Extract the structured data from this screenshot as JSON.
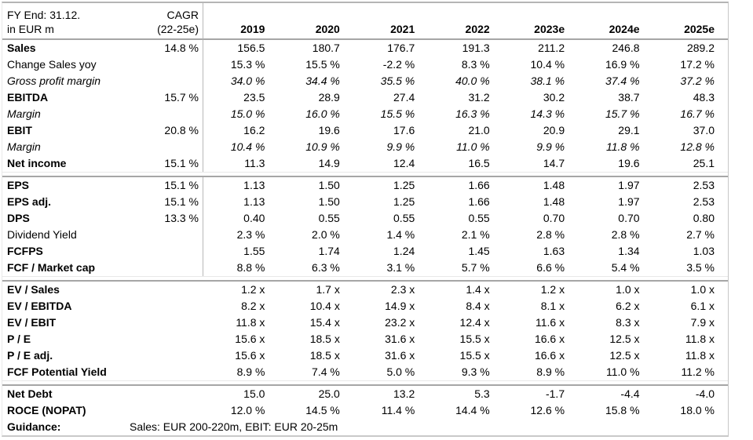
{
  "colors": {
    "text": "#000000",
    "line_strong": "#a6a6a6",
    "line_top": "#b5b5b5",
    "line_bottom": "#c9c9c9",
    "column_divider": "#b9b9b9",
    "line_faint": "#e8e8e8",
    "background": "#ffffff"
  },
  "table": {
    "header": {
      "title_line1": "FY End: 31.12.",
      "title_line2": "in EUR m",
      "cagr_line1": "CAGR",
      "cagr_line2": "(22-25e)",
      "years": [
        "2019",
        "2020",
        "2021",
        "2022",
        "2023e",
        "2024e",
        "2025e"
      ]
    },
    "sections": [
      {
        "divider": true,
        "rows": [
          {
            "label": "Sales",
            "style": "bold",
            "cagr": "14.8 %",
            "values": [
              "156.5",
              "180.7",
              "176.7",
              "191.3",
              "211.2",
              "246.8",
              "289.2"
            ]
          },
          {
            "label": "Change Sales yoy",
            "style": "regular",
            "cagr": "",
            "values": [
              "15.3 %",
              "15.5 %",
              "-2.2 %",
              "8.3 %",
              "10.4 %",
              "16.9 %",
              "17.2 %"
            ]
          },
          {
            "label": "Gross profit margin",
            "style": "italic",
            "cagr": "",
            "values": [
              "34.0 %",
              "34.4 %",
              "35.5 %",
              "40.0 %",
              "38.1 %",
              "37.4 %",
              "37.2 %"
            ]
          },
          {
            "label": "EBITDA",
            "style": "bold",
            "cagr": "15.7 %",
            "values": [
              "23.5",
              "28.9",
              "27.4",
              "31.2",
              "30.2",
              "38.7",
              "48.3"
            ]
          },
          {
            "label": "Margin",
            "style": "italic",
            "cagr": "",
            "values": [
              "15.0 %",
              "16.0 %",
              "15.5 %",
              "16.3 %",
              "14.3 %",
              "15.7 %",
              "16.7 %"
            ]
          },
          {
            "label": "EBIT",
            "style": "bold",
            "cagr": "20.8 %",
            "values": [
              "16.2",
              "19.6",
              "17.6",
              "21.0",
              "20.9",
              "29.1",
              "37.0"
            ]
          },
          {
            "label": "Margin",
            "style": "italic",
            "cagr": "",
            "values": [
              "10.4 %",
              "10.9 %",
              "9.9 %",
              "11.0 %",
              "9.9 %",
              "11.8 %",
              "12.8 %"
            ]
          },
          {
            "label": "Net income",
            "style": "bold",
            "cagr": "15.1 %",
            "values": [
              "11.3",
              "14.9",
              "12.4",
              "16.5",
              "14.7",
              "19.6",
              "25.1"
            ]
          }
        ]
      },
      {
        "divider": true,
        "rows": [
          {
            "label": "EPS",
            "style": "bold",
            "cagr": "15.1 %",
            "values": [
              "1.13",
              "1.50",
              "1.25",
              "1.66",
              "1.48",
              "1.97",
              "2.53"
            ]
          },
          {
            "label": "EPS adj.",
            "style": "bold",
            "cagr": "15.1 %",
            "values": [
              "1.13",
              "1.50",
              "1.25",
              "1.66",
              "1.48",
              "1.97",
              "2.53"
            ]
          },
          {
            "label": "DPS",
            "style": "bold",
            "cagr": "13.3 %",
            "values": [
              "0.40",
              "0.55",
              "0.55",
              "0.55",
              "0.70",
              "0.70",
              "0.80"
            ]
          },
          {
            "label": "Dividend Yield",
            "style": "regular",
            "cagr": "",
            "values": [
              "2.3 %",
              "2.0 %",
              "1.4 %",
              "2.1 %",
              "2.8 %",
              "2.8 %",
              "2.7 %"
            ]
          },
          {
            "label": "FCFPS",
            "style": "bold",
            "cagr": "",
            "values": [
              "1.55",
              "1.74",
              "1.24",
              "1.45",
              "1.63",
              "1.34",
              "1.03"
            ]
          },
          {
            "label": "FCF / Market cap",
            "style": "bold",
            "cagr": "",
            "values": [
              "8.8 %",
              "6.3 %",
              "3.1 %",
              "5.7 %",
              "6.6 %",
              "5.4 %",
              "3.5 %"
            ]
          }
        ]
      },
      {
        "divider": false,
        "rows": [
          {
            "label": "EV / Sales",
            "style": "bold",
            "cagr": "",
            "values": [
              "1.2 x",
              "1.7 x",
              "2.3 x",
              "1.4 x",
              "1.2 x",
              "1.0 x",
              "1.0 x"
            ]
          },
          {
            "label": "EV / EBITDA",
            "style": "bold",
            "cagr": "",
            "values": [
              "8.2 x",
              "10.4 x",
              "14.9 x",
              "8.4 x",
              "8.1 x",
              "6.2 x",
              "6.1 x"
            ]
          },
          {
            "label": "EV / EBIT",
            "style": "bold",
            "cagr": "",
            "values": [
              "11.8 x",
              "15.4 x",
              "23.2 x",
              "12.4 x",
              "11.6 x",
              "8.3 x",
              "7.9 x"
            ]
          },
          {
            "label": "P / E",
            "style": "bold",
            "cagr": "",
            "values": [
              "15.6 x",
              "18.5 x",
              "31.6 x",
              "15.5 x",
              "16.6 x",
              "12.5 x",
              "11.8 x"
            ]
          },
          {
            "label": "P / E adj.",
            "style": "bold",
            "cagr": "",
            "values": [
              "15.6 x",
              "18.5 x",
              "31.6 x",
              "15.5 x",
              "16.6 x",
              "12.5 x",
              "11.8 x"
            ]
          },
          {
            "label": "FCF Potential Yield",
            "style": "bold",
            "cagr": "",
            "values": [
              "8.9 %",
              "7.4 %",
              "5.0 %",
              "9.3 %",
              "8.9 %",
              "11.0 %",
              "11.2 %"
            ]
          }
        ]
      },
      {
        "divider": false,
        "rows": [
          {
            "label": "Net Debt",
            "style": "bold",
            "cagr": "",
            "values": [
              "15.0",
              "25.0",
              "13.2",
              "5.3",
              "-1.7",
              "-4.4",
              "-4.0"
            ]
          },
          {
            "label": "ROCE (NOPAT)",
            "style": "bold",
            "cagr": "",
            "values": [
              "12.0 %",
              "14.5 %",
              "11.4 %",
              "14.4 %",
              "12.6 %",
              "15.8 %",
              "18.0 %"
            ]
          },
          {
            "label": "Guidance:",
            "style": "bold",
            "span_text": "Sales: EUR 200-220m, EBIT: EUR 20-25m"
          }
        ]
      }
    ]
  }
}
